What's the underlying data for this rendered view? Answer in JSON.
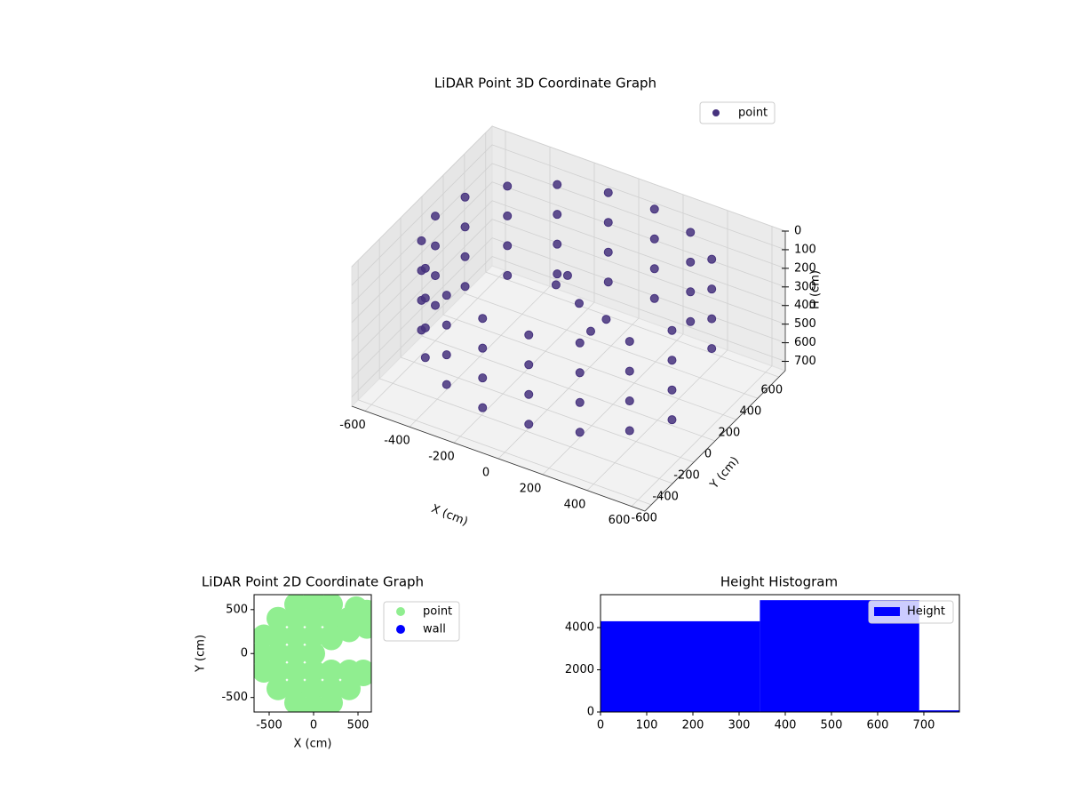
{
  "chart_data": [
    {
      "type": "scatter3d",
      "title": "LiDAR Point 3D Coordinate Graph",
      "x_label": "X (cm)",
      "y_label": "Y (cm)",
      "z_label": "H (cm)",
      "xlim": [
        -660,
        660
      ],
      "ylim": [
        -660,
        660
      ],
      "zlim": [
        0,
        750
      ],
      "z_inverted": true,
      "xticks": [
        -600,
        -400,
        -200,
        0,
        200,
        400,
        600
      ],
      "yticks": [
        -600,
        -400,
        -200,
        0,
        200,
        400,
        600
      ],
      "zticks": [
        0,
        100,
        200,
        300,
        400,
        500,
        600,
        700
      ],
      "grid": true,
      "legend": "upper right",
      "series": [
        {
          "name": "point",
          "color": "#46327e",
          "x": [
            460,
            300,
            104,
            -104,
            -300,
            -460,
            -564,
            -600,
            -564,
            -460,
            -300,
            -104,
            104,
            300,
            460,
            564,
            460,
            300,
            104,
            -104,
            -300,
            -460,
            -564,
            -600,
            -564,
            -460,
            -300,
            -104,
            104,
            300,
            460,
            564,
            460,
            300,
            104,
            -104,
            -300,
            -460,
            -564,
            -600,
            -564,
            -460,
            -300,
            -104,
            104,
            300,
            460,
            564,
            460,
            300,
            104,
            -104,
            -300,
            -460,
            -564,
            -600,
            -564,
            -460,
            -300,
            -104,
            104,
            300,
            460,
            564,
            -100,
            0,
            100,
            -200,
            50
          ],
          "y": [
            386,
            520,
            591,
            591,
            520,
            386,
            205,
            0,
            -205,
            -386,
            -520,
            -591,
            -591,
            -520,
            -386,
            -205,
            386,
            520,
            591,
            591,
            520,
            386,
            205,
            0,
            -205,
            -386,
            -520,
            -591,
            -591,
            -520,
            -386,
            -205,
            386,
            520,
            591,
            591,
            520,
            386,
            205,
            0,
            -205,
            -386,
            -520,
            -591,
            -591,
            -520,
            -386,
            -205,
            386,
            520,
            591,
            591,
            520,
            386,
            205,
            0,
            -205,
            -386,
            -520,
            -591,
            -591,
            -520,
            -386,
            -205,
            200,
            100,
            0,
            300,
            250
          ],
          "z": [
            80,
            80,
            80,
            80,
            80,
            80,
            80,
            80,
            80,
            80,
            80,
            80,
            80,
            80,
            80,
            80,
            240,
            240,
            240,
            240,
            240,
            240,
            240,
            240,
            240,
            240,
            240,
            240,
            240,
            240,
            240,
            240,
            400,
            400,
            400,
            400,
            400,
            400,
            400,
            400,
            400,
            400,
            400,
            400,
            400,
            400,
            400,
            400,
            560,
            560,
            560,
            560,
            560,
            560,
            560,
            560,
            560,
            560,
            560,
            560,
            560,
            560,
            560,
            560,
            300,
            350,
            400,
            450,
            500
          ]
        }
      ]
    },
    {
      "type": "scatter",
      "title": "LiDAR Point 2D Coordinate Graph",
      "x_label": "X (cm)",
      "y_label": "Y (cm)",
      "xlim": [
        -670,
        650
      ],
      "ylim": [
        -665,
        670
      ],
      "xticks": [
        -500,
        0,
        500
      ],
      "yticks": [
        -500,
        0,
        500
      ],
      "legend": "outside right",
      "series": [
        {
          "name": "point",
          "color": "#90ee90",
          "x": [
            0,
            -400,
            -200,
            0,
            200,
            400,
            -400,
            -200,
            0,
            200,
            -600,
            -400,
            -200,
            0,
            -400,
            -200,
            0,
            200,
            400,
            -400,
            -200,
            0,
            200,
            400,
            0,
            -560,
            -560,
            -200,
            200,
            -200,
            200,
            560,
            560,
            480,
            560,
            600,
            400,
            600,
            200
          ],
          "y": [
            600,
            400,
            400,
            400,
            400,
            400,
            200,
            200,
            200,
            200,
            0,
            0,
            0,
            0,
            -200,
            -200,
            -200,
            -200,
            -200,
            -400,
            -400,
            -400,
            -400,
            -400,
            -600,
            -200,
            200,
            -560,
            -560,
            560,
            560,
            -200,
            420,
            520,
            -240,
            480,
            260,
            300,
            170
          ]
        },
        {
          "name": "wall",
          "color": "#0000ff",
          "x": [],
          "y": []
        }
      ]
    },
    {
      "type": "histogram",
      "title": "Height Histogram",
      "series_name": "Height",
      "color": "#0000ff",
      "bins": [
        0,
        345,
        690,
        1035
      ],
      "values": [
        4300,
        5300,
        80
      ],
      "xlim": [
        0,
        777
      ],
      "ylim": [
        0,
        5560
      ],
      "xticks": [
        0,
        100,
        200,
        300,
        400,
        500,
        600,
        700
      ],
      "yticks": [
        0,
        2000,
        4000
      ],
      "legend": "upper right"
    }
  ]
}
